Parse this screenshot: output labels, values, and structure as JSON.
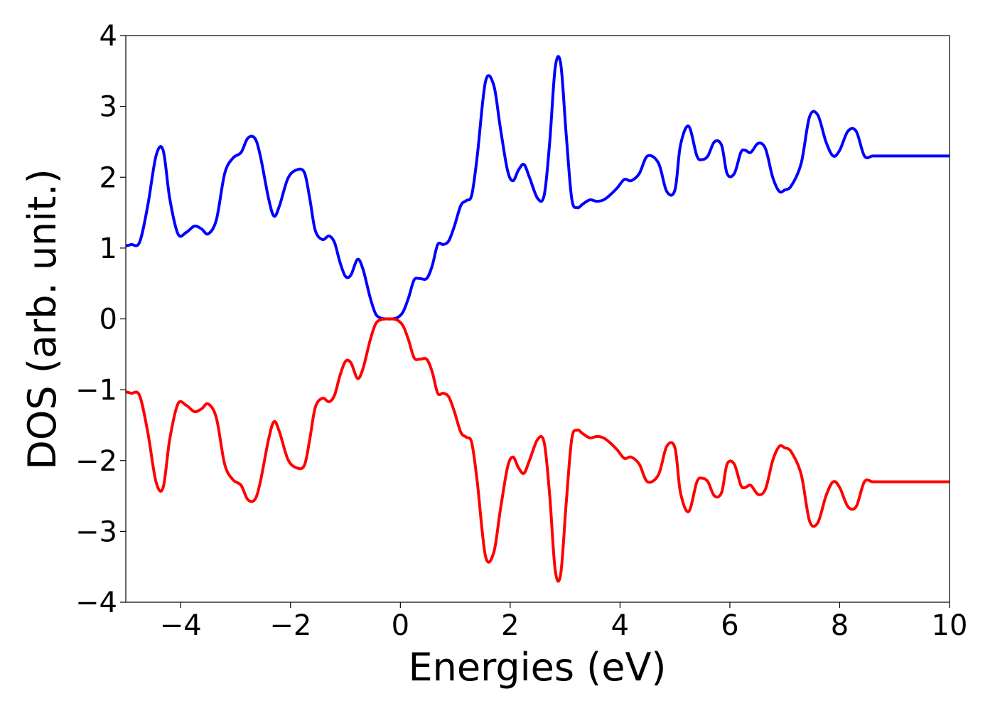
{
  "chart_data": {
    "type": "line",
    "title": "",
    "xlabel": "Energies (eV)",
    "ylabel": "DOS (arb. unit.)",
    "xlim": [
      -5,
      10
    ],
    "ylim": [
      -4,
      4
    ],
    "xticks": [
      -4,
      -2,
      0,
      2,
      4,
      6,
      8,
      10
    ],
    "xtick_labels": [
      "−4",
      "−2",
      "0",
      "2",
      "4",
      "6",
      "8",
      "10"
    ],
    "yticks": [
      -4,
      -3,
      -2,
      -1,
      0,
      1,
      2,
      3,
      4
    ],
    "ytick_labels": [
      "−4",
      "−3",
      "−2",
      "−1",
      "0",
      "1",
      "2",
      "3",
      "4"
    ],
    "grid": false,
    "legend": "none",
    "series": [
      {
        "color": "#0000ff",
        "x": [
          -5.0,
          -4.9,
          -4.75,
          -4.6,
          -4.45,
          -4.32,
          -4.2,
          -4.05,
          -3.9,
          -3.75,
          -3.62,
          -3.5,
          -3.35,
          -3.2,
          -3.05,
          -2.9,
          -2.78,
          -2.65,
          -2.55,
          -2.4,
          -2.3,
          -2.2,
          -2.05,
          -1.9,
          -1.75,
          -1.65,
          -1.55,
          -1.42,
          -1.3,
          -1.2,
          -1.1,
          -1.0,
          -0.9,
          -0.78,
          -0.68,
          -0.55,
          -0.45,
          -0.35,
          -0.25,
          -0.15,
          -0.05,
          0.05,
          0.15,
          0.25,
          0.35,
          0.48,
          0.58,
          0.68,
          0.78,
          0.88,
          0.98,
          1.1,
          1.2,
          1.3,
          1.4,
          1.55,
          1.7,
          1.82,
          1.95,
          2.05,
          2.15,
          2.25,
          2.35,
          2.5,
          2.62,
          2.72,
          2.82,
          2.92,
          3.02,
          3.12,
          3.22,
          3.32,
          3.45,
          3.58,
          3.7,
          3.82,
          3.95,
          4.08,
          4.2,
          4.35,
          4.5,
          4.7,
          4.85,
          5.0,
          5.1,
          5.25,
          5.4,
          5.5,
          5.6,
          5.72,
          5.85,
          5.95,
          6.08,
          6.2,
          6.28,
          6.38,
          6.52,
          6.65,
          6.78,
          6.9,
          7.0,
          7.12,
          7.3,
          7.45,
          7.6,
          7.75,
          7.88,
          8.0,
          8.15,
          8.3,
          8.45,
          8.6,
          8.75,
          8.9,
          9.0,
          9.15,
          9.3,
          9.45,
          9.6,
          9.75,
          9.85,
          9.95,
          10.0
        ],
        "values": [
          1.03,
          1.05,
          1.08,
          1.6,
          2.3,
          2.38,
          1.7,
          1.2,
          1.22,
          1.31,
          1.27,
          1.2,
          1.4,
          2.05,
          2.27,
          2.35,
          2.55,
          2.55,
          2.3,
          1.7,
          1.45,
          1.6,
          1.98,
          2.1,
          2.07,
          1.7,
          1.25,
          1.12,
          1.17,
          1.08,
          0.8,
          0.6,
          0.62,
          0.84,
          0.7,
          0.3,
          0.07,
          0.01,
          0.0,
          0.0,
          0.02,
          0.1,
          0.3,
          0.55,
          0.57,
          0.57,
          0.75,
          1.05,
          1.05,
          1.1,
          1.3,
          1.6,
          1.67,
          1.75,
          2.3,
          3.35,
          3.3,
          2.7,
          2.1,
          1.95,
          2.1,
          2.18,
          2.0,
          1.7,
          1.75,
          2.5,
          3.55,
          3.6,
          2.6,
          1.7,
          1.57,
          1.62,
          1.68,
          1.66,
          1.68,
          1.75,
          1.85,
          1.97,
          1.95,
          2.05,
          2.3,
          2.2,
          1.8,
          1.82,
          2.45,
          2.72,
          2.3,
          2.25,
          2.3,
          2.5,
          2.45,
          2.05,
          2.05,
          2.35,
          2.38,
          2.35,
          2.48,
          2.4,
          2.0,
          1.8,
          1.82,
          1.88,
          2.2,
          2.85,
          2.88,
          2.5,
          2.3,
          2.38,
          2.65,
          2.65,
          2.3,
          2.3,
          2.3,
          2.3,
          2.3,
          2.3,
          2.3,
          2.3,
          2.3,
          2.3,
          2.3,
          2.3,
          2.3
        ]
      },
      {
        "color": "#ff0000",
        "x": [
          -5.0,
          -4.9,
          -4.75,
          -4.6,
          -4.45,
          -4.32,
          -4.2,
          -4.05,
          -3.9,
          -3.75,
          -3.62,
          -3.5,
          -3.35,
          -3.2,
          -3.05,
          -2.9,
          -2.78,
          -2.65,
          -2.55,
          -2.4,
          -2.3,
          -2.2,
          -2.05,
          -1.9,
          -1.75,
          -1.65,
          -1.55,
          -1.42,
          -1.3,
          -1.2,
          -1.1,
          -1.0,
          -0.9,
          -0.78,
          -0.68,
          -0.55,
          -0.45,
          -0.35,
          -0.25,
          -0.15,
          -0.05,
          0.05,
          0.15,
          0.25,
          0.35,
          0.48,
          0.58,
          0.68,
          0.78,
          0.88,
          0.98,
          1.1,
          1.2,
          1.3,
          1.4,
          1.55,
          1.7,
          1.82,
          1.95,
          2.05,
          2.15,
          2.25,
          2.35,
          2.5,
          2.62,
          2.72,
          2.82,
          2.92,
          3.02,
          3.12,
          3.22,
          3.32,
          3.45,
          3.58,
          3.7,
          3.82,
          3.95,
          4.08,
          4.2,
          4.35,
          4.5,
          4.7,
          4.85,
          5.0,
          5.1,
          5.25,
          5.4,
          5.5,
          5.6,
          5.72,
          5.85,
          5.95,
          6.08,
          6.2,
          6.28,
          6.38,
          6.52,
          6.65,
          6.78,
          6.9,
          7.0,
          7.12,
          7.3,
          7.45,
          7.6,
          7.75,
          7.88,
          8.0,
          8.15,
          8.3,
          8.45,
          8.6,
          8.75,
          8.9,
          9.0,
          9.15,
          9.3,
          9.45,
          9.6,
          9.75,
          9.85,
          9.95,
          10.0
        ],
        "values": [
          -1.03,
          -1.05,
          -1.08,
          -1.6,
          -2.3,
          -2.38,
          -1.7,
          -1.2,
          -1.22,
          -1.31,
          -1.27,
          -1.2,
          -1.4,
          -2.05,
          -2.27,
          -2.35,
          -2.55,
          -2.55,
          -2.3,
          -1.7,
          -1.45,
          -1.6,
          -1.98,
          -2.1,
          -2.07,
          -1.7,
          -1.25,
          -1.12,
          -1.17,
          -1.08,
          -0.8,
          -0.6,
          -0.62,
          -0.84,
          -0.7,
          -0.3,
          -0.07,
          -0.01,
          0.0,
          0.0,
          -0.02,
          -0.1,
          -0.3,
          -0.55,
          -0.57,
          -0.57,
          -0.75,
          -1.05,
          -1.05,
          -1.1,
          -1.3,
          -1.6,
          -1.67,
          -1.75,
          -2.3,
          -3.35,
          -3.3,
          -2.7,
          -2.1,
          -1.95,
          -2.1,
          -2.18,
          -2.0,
          -1.7,
          -1.75,
          -2.5,
          -3.55,
          -3.6,
          -2.6,
          -1.7,
          -1.57,
          -1.62,
          -1.68,
          -1.66,
          -1.68,
          -1.75,
          -1.85,
          -1.97,
          -1.95,
          -2.05,
          -2.3,
          -2.2,
          -1.8,
          -1.82,
          -2.45,
          -2.72,
          -2.3,
          -2.25,
          -2.3,
          -2.5,
          -2.45,
          -2.05,
          -2.05,
          -2.35,
          -2.38,
          -2.35,
          -2.48,
          -2.4,
          -2.0,
          -1.8,
          -1.82,
          -1.88,
          -2.2,
          -2.85,
          -2.88,
          -2.5,
          -2.3,
          -2.38,
          -2.65,
          -2.65,
          -2.3,
          -2.3,
          -2.3,
          -2.3,
          -2.3,
          -2.3,
          -2.3,
          -2.3,
          -2.3,
          -2.3,
          -2.3,
          -2.3,
          -2.3
        ]
      }
    ]
  }
}
